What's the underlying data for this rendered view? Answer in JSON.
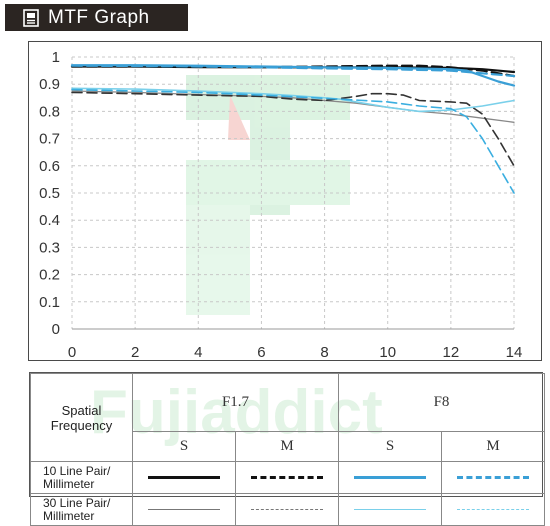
{
  "header": {
    "title": "MTF Graph",
    "icon": "document-icon"
  },
  "colors": {
    "header_bg": "#2b2522",
    "sagittal_f17": "#111111",
    "meridional_f17": "#111111",
    "sagittal_f8": "#3a9fd6",
    "meridional_f8": "#3a9fd6",
    "thin_f17": "#888888",
    "thin_f8": "#7ad0ea"
  },
  "legend": {
    "row_header": "Spatial\nFrequency",
    "aperture_1": "F1.7",
    "aperture_2": "F8",
    "s_label": "S",
    "m_label": "M",
    "row_10": "10 Line Pair/\nMillimeter",
    "row_30": "30 Line Pair/\nMillimeter"
  },
  "chart_data": {
    "type": "line",
    "xlabel": "",
    "ylabel": "",
    "xlim": [
      0,
      14
    ],
    "ylim": [
      0,
      1
    ],
    "xticks": [
      0,
      2,
      4,
      6,
      8,
      10,
      12,
      14
    ],
    "yticks": [
      0,
      0.1,
      0.2,
      0.3,
      0.4,
      0.5,
      0.6,
      0.7,
      0.8,
      0.9,
      1
    ],
    "ytick_labels": [
      "0",
      "0.1",
      "0.2",
      "0.3",
      "0.4",
      "0.5",
      "0.6",
      "0.7",
      "0.8",
      "0.9",
      "1"
    ],
    "grid": true,
    "series": [
      {
        "aperture": "F1.7",
        "frequency": "10 lp/mm",
        "orientation": "S",
        "color": "#111111",
        "dash": "solid",
        "width": 2.2,
        "x": [
          0,
          2,
          4,
          6,
          8,
          10,
          12,
          13,
          14
        ],
        "y": [
          0.965,
          0.965,
          0.963,
          0.962,
          0.962,
          0.962,
          0.96,
          0.955,
          0.945
        ]
      },
      {
        "aperture": "F1.7",
        "frequency": "10 lp/mm",
        "orientation": "M",
        "color": "#111111",
        "dash": "long",
        "width": 2.2,
        "x": [
          0,
          2,
          4,
          6,
          8,
          10,
          11,
          12,
          13,
          14
        ],
        "y": [
          0.965,
          0.965,
          0.964,
          0.963,
          0.965,
          0.968,
          0.968,
          0.962,
          0.95,
          0.93
        ]
      },
      {
        "aperture": "F1.7",
        "frequency": "30 lp/mm",
        "orientation": "S",
        "color": "#888888",
        "dash": "solid",
        "width": 1.3,
        "x": [
          0,
          2,
          4,
          6,
          7,
          8,
          9,
          10,
          11,
          12,
          13,
          14
        ],
        "y": [
          0.875,
          0.87,
          0.862,
          0.855,
          0.85,
          0.84,
          0.83,
          0.815,
          0.8,
          0.79,
          0.775,
          0.76
        ]
      },
      {
        "aperture": "F1.7",
        "frequency": "30 lp/mm",
        "orientation": "M",
        "color": "#333333",
        "dash": "long",
        "width": 1.6,
        "x": [
          0,
          2,
          4,
          6,
          7,
          8,
          9,
          9.5,
          10,
          10.5,
          11,
          12,
          12.5,
          13,
          13.5,
          14
        ],
        "y": [
          0.87,
          0.865,
          0.86,
          0.855,
          0.845,
          0.84,
          0.855,
          0.865,
          0.865,
          0.86,
          0.84,
          0.835,
          0.83,
          0.79,
          0.7,
          0.6
        ]
      },
      {
        "aperture": "F8",
        "frequency": "10 lp/mm",
        "orientation": "S",
        "color": "#3a9fd6",
        "dash": "solid",
        "width": 2.2,
        "x": [
          0,
          2,
          4,
          6,
          8,
          10,
          12,
          12.5,
          13,
          13.5,
          14
        ],
        "y": [
          0.97,
          0.97,
          0.968,
          0.965,
          0.962,
          0.96,
          0.955,
          0.95,
          0.93,
          0.91,
          0.895
        ]
      },
      {
        "aperture": "F8",
        "frequency": "10 lp/mm",
        "orientation": "M",
        "color": "#3a9fd6",
        "dash": "long",
        "width": 2.2,
        "x": [
          0,
          2,
          4,
          6,
          8,
          10,
          12,
          13,
          14
        ],
        "y": [
          0.968,
          0.967,
          0.965,
          0.962,
          0.958,
          0.955,
          0.95,
          0.94,
          0.93
        ]
      },
      {
        "aperture": "F8",
        "frequency": "30 lp/mm",
        "orientation": "S",
        "color": "#7ad0ea",
        "dash": "solid",
        "width": 1.6,
        "x": [
          0,
          2,
          4,
          6,
          7,
          8,
          8.5,
          9,
          10,
          11,
          12,
          13,
          14
        ],
        "y": [
          0.885,
          0.882,
          0.875,
          0.865,
          0.858,
          0.85,
          0.845,
          0.835,
          0.815,
          0.8,
          0.805,
          0.82,
          0.84
        ]
      },
      {
        "aperture": "F8",
        "frequency": "30 lp/mm",
        "orientation": "M",
        "color": "#3aaee0",
        "dash": "long",
        "width": 1.6,
        "x": [
          0,
          2,
          4,
          6,
          8,
          10,
          11,
          12,
          12.5,
          13,
          13.5,
          14
        ],
        "y": [
          0.88,
          0.875,
          0.87,
          0.86,
          0.848,
          0.835,
          0.82,
          0.81,
          0.78,
          0.7,
          0.6,
          0.5
        ]
      }
    ]
  }
}
